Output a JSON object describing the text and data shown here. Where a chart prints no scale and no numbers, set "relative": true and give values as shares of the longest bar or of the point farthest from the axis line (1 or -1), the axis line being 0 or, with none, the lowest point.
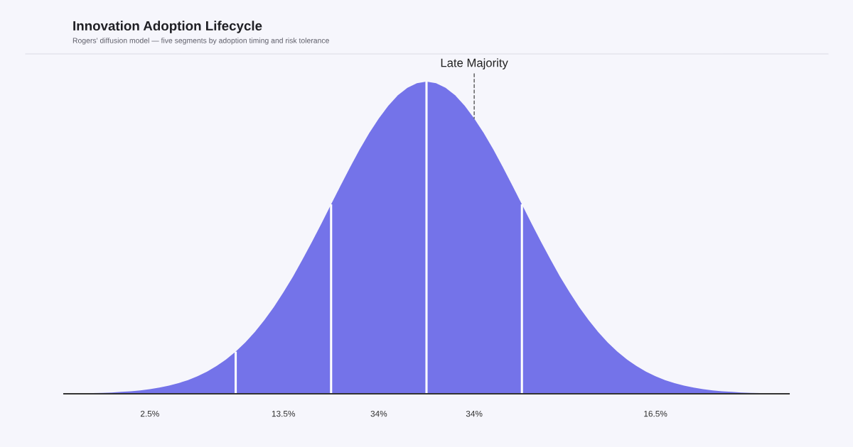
{
  "chart_data": {
    "type": "area",
    "title": "Innovation Adoption Lifecycle",
    "subtitle": "Rogers' diffusion model — five segments by adoption timing and risk tolerance",
    "relative": true,
    "categories": [
      null,
      null,
      null,
      null,
      null,
      null,
      null,
      null,
      null,
      "2.5%",
      null,
      null,
      null,
      null,
      null,
      null,
      null,
      null,
      null,
      null,
      null,
      null,
      null,
      "13.5%",
      null,
      null,
      null,
      null,
      null,
      null,
      null,
      null,
      null,
      "34%",
      null,
      null,
      null,
      null,
      null,
      null,
      null,
      null,
      null,
      "34%",
      null,
      null,
      null,
      null,
      null,
      null,
      null,
      null,
      null,
      null,
      null,
      null,
      null,
      null,
      null,
      null,
      null,
      null,
      "16.5%",
      null,
      null,
      null,
      null,
      null,
      null,
      null,
      null,
      null,
      null,
      null,
      null,
      null,
      null
    ],
    "series": [
      {
        "color": "#7473e9",
        "values": [
          0.001,
          0.001,
          0.002,
          0.002,
          0.003,
          0.004,
          0.006,
          0.008,
          0.011,
          0.015,
          0.02,
          0.026,
          0.034,
          0.044,
          0.056,
          0.071,
          0.089,
          0.11,
          0.135,
          null,
          null,
          null,
          null,
          null,
          null,
          null,
          null,
          null,
          null,
          null,
          null,
          null,
          null,
          null,
          null,
          null,
          null,
          null,
          null,
          null,
          null,
          null,
          null,
          null,
          null,
          null,
          null,
          null,
          null,
          null,
          null,
          null,
          null,
          null,
          null,
          null,
          null,
          null,
          null,
          null,
          null,
          null,
          null,
          null,
          null,
          null,
          null,
          null,
          null,
          null,
          null,
          null,
          null,
          null,
          null,
          null,
          null
        ]
      },
      {
        "color": "#7473e9",
        "values": [
          null,
          null,
          null,
          null,
          null,
          null,
          null,
          null,
          null,
          null,
          null,
          null,
          null,
          null,
          null,
          null,
          null,
          null,
          0.135,
          0.164,
          0.198,
          0.236,
          0.278,
          0.325,
          0.375,
          0.43,
          0.487,
          0.546,
          0.607,
          null,
          null,
          null,
          null,
          null,
          null,
          null,
          null,
          null,
          null,
          null,
          null,
          null,
          null,
          null,
          null,
          null,
          null,
          null,
          null,
          null,
          null,
          null,
          null,
          null,
          null,
          null,
          null,
          null,
          null,
          null,
          null,
          null,
          null,
          null,
          null,
          null,
          null,
          null,
          null,
          null,
          null,
          null,
          null,
          null,
          null,
          null,
          null
        ]
      },
      {
        "color": "#7473e9",
        "values": [
          null,
          null,
          null,
          null,
          null,
          null,
          null,
          null,
          null,
          null,
          null,
          null,
          null,
          null,
          null,
          null,
          null,
          null,
          null,
          null,
          null,
          null,
          null,
          null,
          null,
          null,
          null,
          null,
          0.607,
          0.667,
          0.726,
          0.783,
          0.835,
          0.882,
          0.923,
          0.956,
          0.98,
          0.995,
          1.0,
          null,
          null,
          null,
          null,
          null,
          null,
          null,
          null,
          null,
          null,
          null,
          null,
          null,
          null,
          null,
          null,
          null,
          null,
          null,
          null,
          null,
          null,
          null,
          null,
          null,
          null,
          null,
          null,
          null,
          null,
          null,
          null,
          null,
          null,
          null,
          null,
          null,
          null
        ]
      },
      {
        "name": "Late Majority",
        "color": "#7473e9",
        "values": [
          null,
          null,
          null,
          null,
          null,
          null,
          null,
          null,
          null,
          null,
          null,
          null,
          null,
          null,
          null,
          null,
          null,
          null,
          null,
          null,
          null,
          null,
          null,
          null,
          null,
          null,
          null,
          null,
          null,
          null,
          null,
          null,
          null,
          null,
          null,
          null,
          null,
          null,
          1.0,
          0.995,
          0.98,
          0.956,
          0.923,
          0.882,
          0.835,
          0.783,
          0.726,
          0.667,
          0.607,
          null,
          null,
          null,
          null,
          null,
          null,
          null,
          null,
          null,
          null,
          null,
          null,
          null,
          null,
          null,
          null,
          null,
          null,
          null,
          null,
          null,
          null,
          null,
          null,
          null,
          null,
          null,
          null
        ]
      },
      {
        "color": "#7473e9",
        "values": [
          null,
          null,
          null,
          null,
          null,
          null,
          null,
          null,
          null,
          null,
          null,
          null,
          null,
          null,
          null,
          null,
          null,
          null,
          null,
          null,
          null,
          null,
          null,
          null,
          null,
          null,
          null,
          null,
          null,
          null,
          null,
          null,
          null,
          null,
          null,
          null,
          null,
          null,
          null,
          null,
          null,
          null,
          null,
          null,
          null,
          null,
          null,
          null,
          0.607,
          0.546,
          0.487,
          0.43,
          0.375,
          0.325,
          0.278,
          0.236,
          0.198,
          0.164,
          0.135,
          0.11,
          0.089,
          0.071,
          0.056,
          0.044,
          0.034,
          0.026,
          0.02,
          0.015,
          0.011,
          0.008,
          0.006,
          0.004,
          0.003,
          0.002,
          0.002,
          0.001,
          0.001
        ]
      }
    ]
  }
}
